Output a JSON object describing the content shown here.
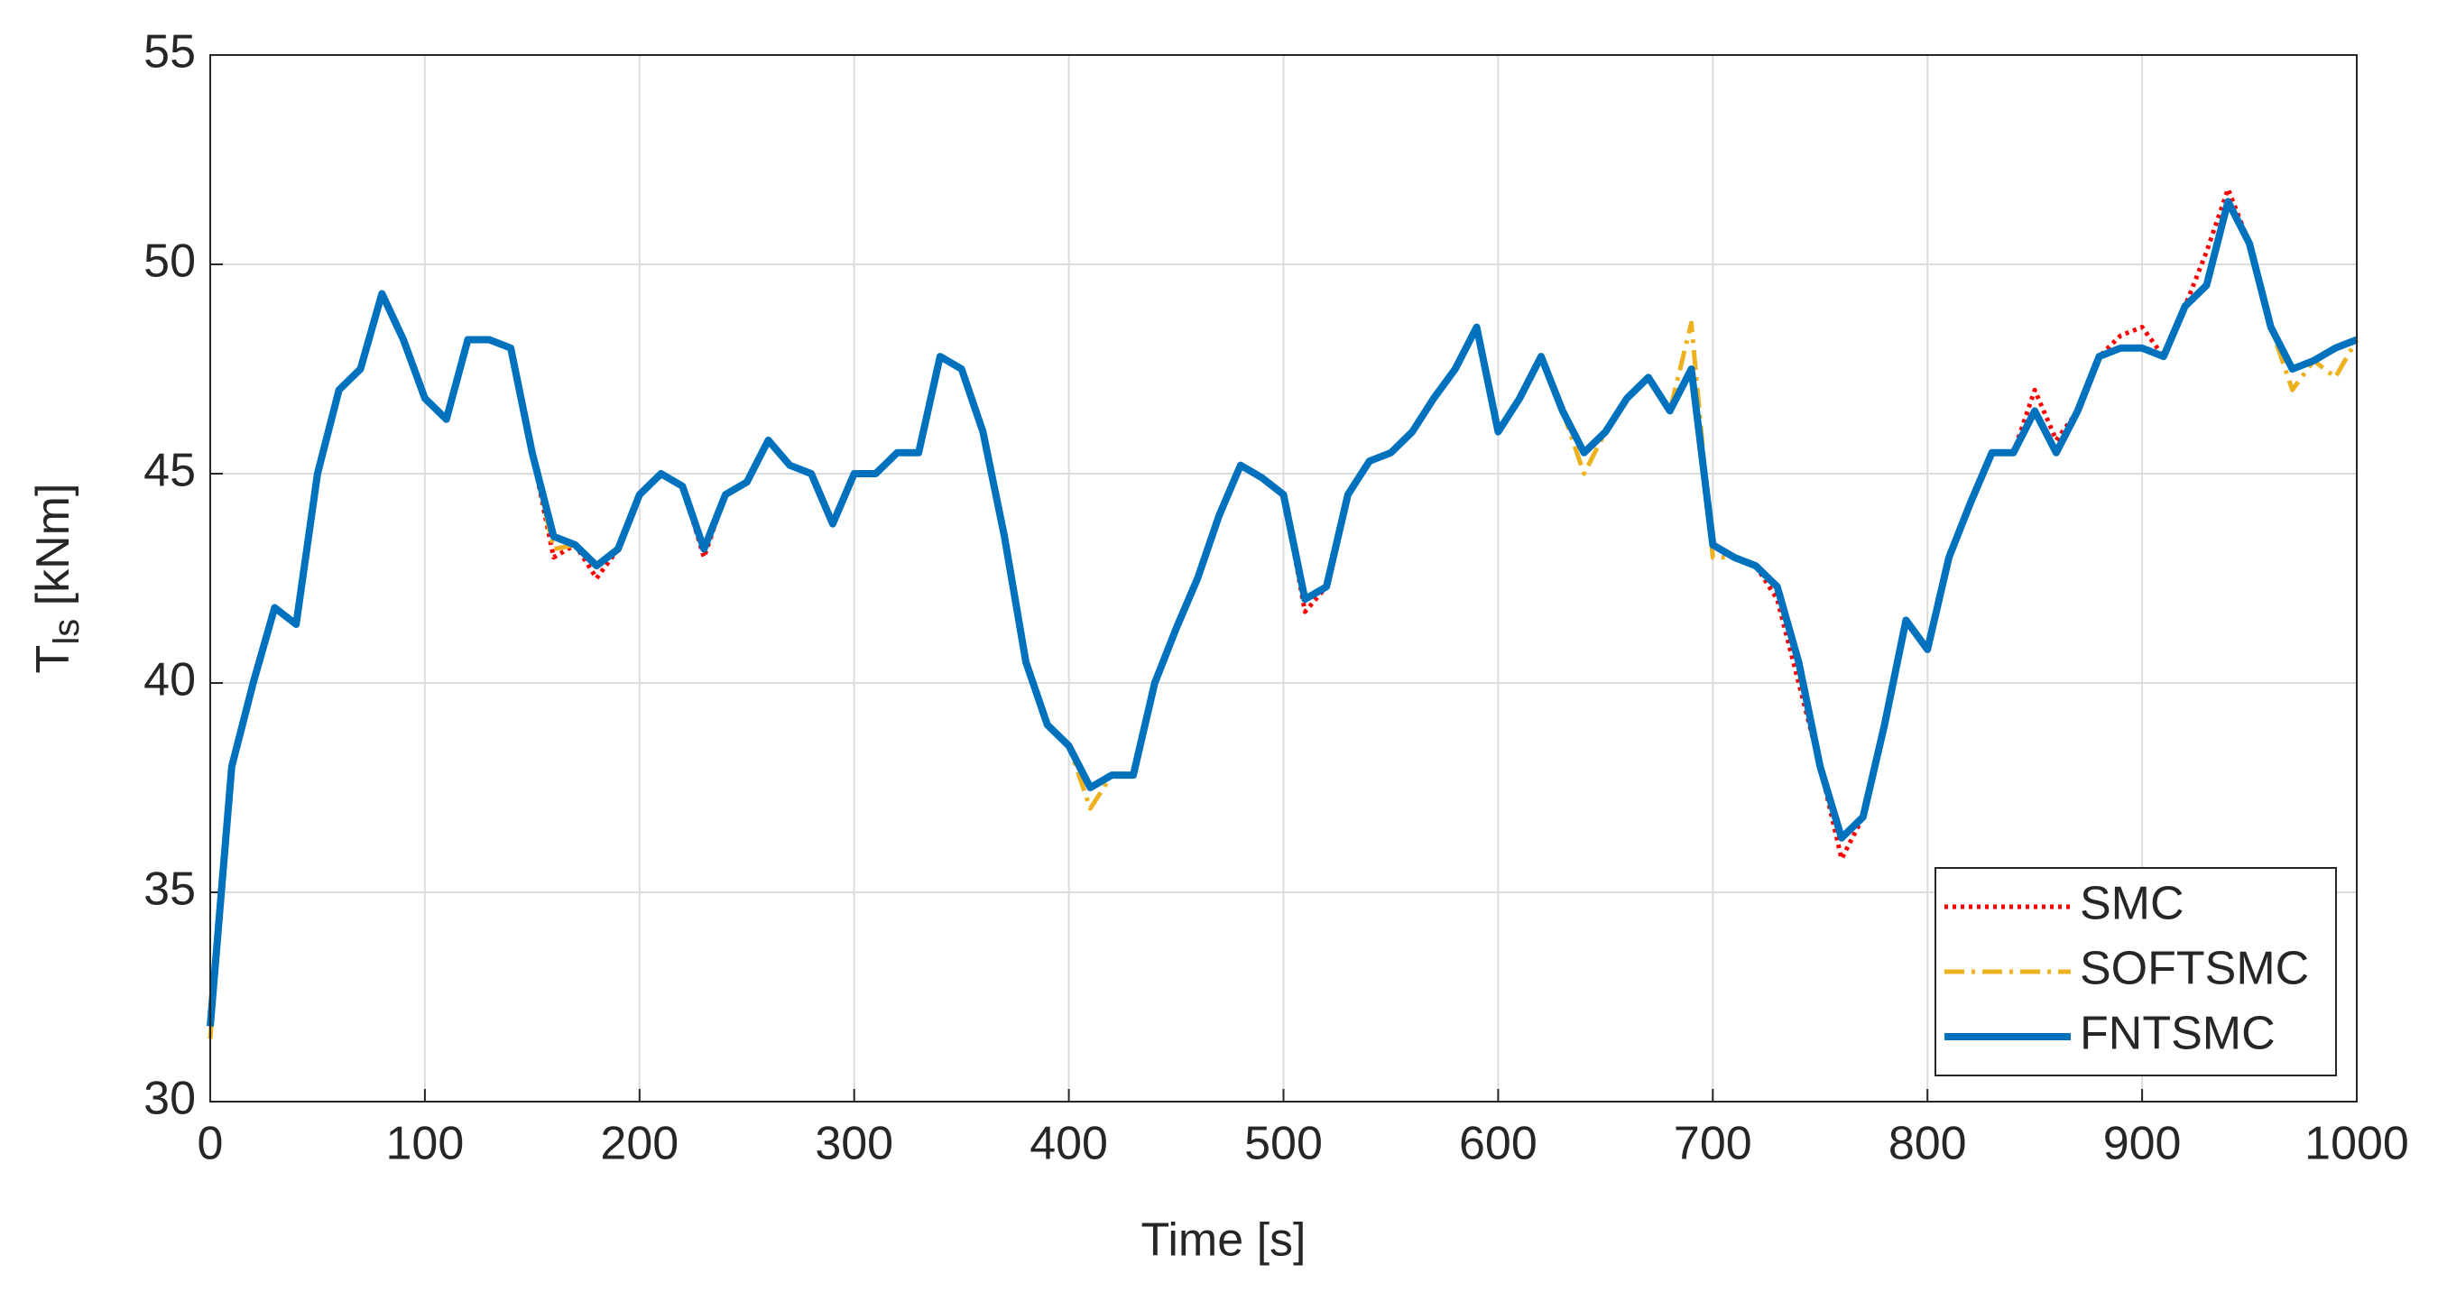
{
  "chart_data": {
    "type": "line",
    "ylabel": {
      "base": "T",
      "sub": "ls",
      "rest": " [kNm]"
    },
    "xlabel": "Time [s]",
    "x": [
      0,
      10,
      20,
      30,
      40,
      50,
      60,
      70,
      80,
      90,
      100,
      110,
      120,
      130,
      140,
      150,
      160,
      170,
      180,
      190,
      200,
      210,
      220,
      230,
      240,
      250,
      260,
      270,
      280,
      290,
      300,
      310,
      320,
      330,
      340,
      350,
      360,
      370,
      380,
      390,
      400,
      410,
      420,
      430,
      440,
      450,
      460,
      470,
      480,
      490,
      500,
      510,
      520,
      530,
      540,
      550,
      560,
      570,
      580,
      590,
      600,
      610,
      620,
      630,
      640,
      650,
      660,
      670,
      680,
      690,
      700,
      710,
      720,
      730,
      740,
      750,
      760,
      770,
      780,
      790,
      800,
      810,
      820,
      830,
      840,
      850,
      860,
      870,
      880,
      890,
      900,
      910,
      920,
      930,
      940,
      950,
      960,
      970,
      980,
      990,
      1000
    ],
    "series": [
      {
        "name": "SMC",
        "color": "#ff0000",
        "dash": "dotted",
        "values": [
          31.8,
          38,
          40,
          41.8,
          41.4,
          45,
          47,
          47.5,
          49.3,
          48.2,
          46.8,
          46.3,
          48.2,
          48.2,
          48,
          45.5,
          43,
          43.3,
          42.5,
          43.2,
          44.5,
          45,
          44.7,
          43,
          44.5,
          44.8,
          45.8,
          45.2,
          45,
          43.8,
          45,
          45,
          45.5,
          45.5,
          47.8,
          47.5,
          46,
          43.5,
          40.5,
          39,
          38.5,
          37.5,
          37.8,
          37.8,
          40,
          41.3,
          42.5,
          44,
          45.2,
          44.9,
          44.5,
          41.7,
          42.3,
          44.5,
          45.3,
          45.5,
          46,
          46.8,
          47.5,
          48.5,
          46,
          46.8,
          47.8,
          46.5,
          45.5,
          46,
          46.8,
          47.3,
          46.5,
          47.5,
          43.3,
          43,
          42.8,
          42,
          40,
          38,
          35.8,
          36.8,
          39,
          41.5,
          40.8,
          43,
          44.3,
          45.5,
          45.5,
          47,
          45.8,
          46.5,
          47.8,
          48.3,
          48.5,
          47.8,
          49,
          50.3,
          51.8,
          50.5,
          48.5,
          47.5,
          47.7,
          48,
          48.2
        ]
      },
      {
        "name": "SOFTSMC",
        "color": "#edb120",
        "dash": "dashdot",
        "values": [
          31.5,
          38,
          40,
          41.8,
          41.4,
          45,
          47,
          47.5,
          49.3,
          48.2,
          46.8,
          46.3,
          48.2,
          48.2,
          48,
          45.5,
          43.2,
          43.3,
          42.8,
          43.2,
          44.5,
          45,
          44.7,
          43.2,
          44.5,
          44.8,
          45.8,
          45.2,
          45,
          43.8,
          45,
          45,
          45.5,
          45.5,
          47.8,
          47.5,
          46,
          43.5,
          40.5,
          39,
          38.5,
          37,
          37.8,
          37.8,
          40,
          41.3,
          42.5,
          44,
          45.2,
          44.9,
          44.5,
          42,
          42.3,
          44.5,
          45.3,
          45.5,
          46,
          46.8,
          47.5,
          48.5,
          46,
          46.8,
          47.8,
          46.5,
          45,
          46,
          46.8,
          47.3,
          46.5,
          48.6,
          43,
          43,
          42.8,
          42.3,
          40.5,
          38,
          36.3,
          36.8,
          39,
          41.5,
          40.8,
          43,
          44.3,
          45.5,
          45.5,
          46.5,
          45.5,
          46.5,
          47.8,
          48,
          48,
          47.8,
          49,
          49.5,
          51.5,
          50.5,
          48.5,
          47,
          47.7,
          47.3,
          48.2
        ]
      },
      {
        "name": "FNTSMC",
        "color": "#0072bd",
        "dash": "solid",
        "values": [
          31.8,
          38,
          40,
          41.8,
          41.4,
          45,
          47,
          47.5,
          49.3,
          48.2,
          46.8,
          46.3,
          48.2,
          48.2,
          48,
          45.5,
          43.5,
          43.3,
          42.8,
          43.2,
          44.5,
          45,
          44.7,
          43.2,
          44.5,
          44.8,
          45.8,
          45.2,
          45,
          43.8,
          45,
          45,
          45.5,
          45.5,
          47.8,
          47.5,
          46,
          43.5,
          40.5,
          39,
          38.5,
          37.5,
          37.8,
          37.8,
          40,
          41.3,
          42.5,
          44,
          45.2,
          44.9,
          44.5,
          42,
          42.3,
          44.5,
          45.3,
          45.5,
          46,
          46.8,
          47.5,
          48.5,
          46,
          46.8,
          47.8,
          46.5,
          45.5,
          46,
          46.8,
          47.3,
          46.5,
          47.5,
          43.3,
          43,
          42.8,
          42.3,
          40.5,
          38,
          36.3,
          36.8,
          39,
          41.5,
          40.8,
          43,
          44.3,
          45.5,
          45.5,
          46.5,
          45.5,
          46.5,
          47.8,
          48,
          48,
          47.8,
          49,
          49.5,
          51.5,
          50.5,
          48.5,
          47.5,
          47.7,
          48,
          48.2
        ]
      }
    ],
    "xlim": [
      0,
      1000
    ],
    "xticks": [
      0,
      100,
      200,
      300,
      400,
      500,
      600,
      700,
      800,
      900,
      1000
    ],
    "ylim": [
      30,
      55
    ],
    "yticks": [
      30,
      35,
      40,
      45,
      50,
      55
    ],
    "grid": true,
    "legend": "lower right"
  }
}
